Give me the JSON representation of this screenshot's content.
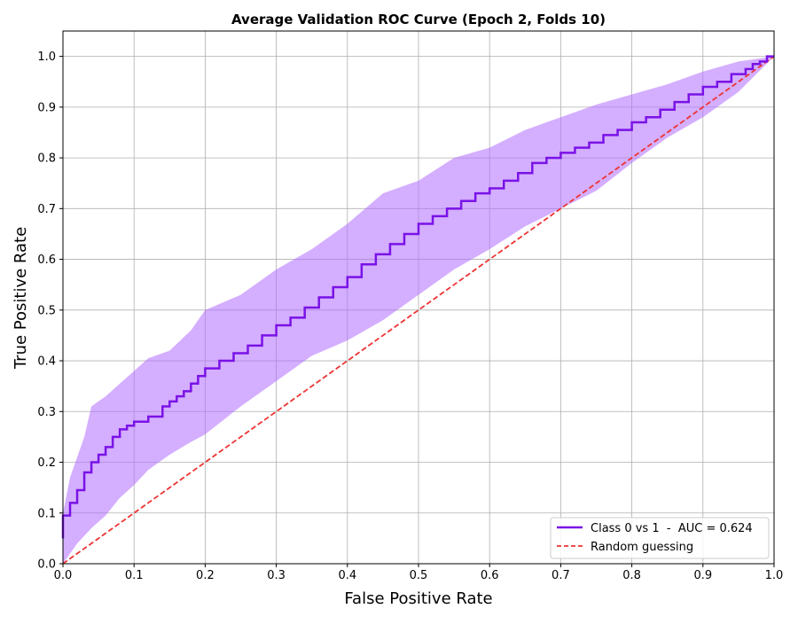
{
  "chart_data": {
    "type": "line",
    "title": "Average Validation ROC Curve (Epoch 2, Folds 10)",
    "xlabel": "False Positive Rate",
    "ylabel": "True Positive Rate",
    "xlim": [
      0.0,
      1.0
    ],
    "ylim": [
      0.0,
      1.05
    ],
    "xticks": [
      "0.0",
      "0.1",
      "0.2",
      "0.3",
      "0.4",
      "0.5",
      "0.6",
      "0.7",
      "0.8",
      "0.9",
      "1.0"
    ],
    "yticks": [
      "0.0",
      "0.1",
      "0.2",
      "0.3",
      "0.4",
      "0.5",
      "0.6",
      "0.7",
      "0.8",
      "0.9",
      "1.0"
    ],
    "grid": true,
    "legend_position": "bottom-right",
    "series": [
      {
        "name": "Class 0 vs 1  -  AUC = 0.624",
        "color": "#7a12e6",
        "style": "step",
        "x": [
          0.0,
          0.0,
          0.01,
          0.02,
          0.03,
          0.04,
          0.05,
          0.06,
          0.07,
          0.08,
          0.09,
          0.1,
          0.12,
          0.14,
          0.15,
          0.16,
          0.17,
          0.18,
          0.19,
          0.2,
          0.22,
          0.24,
          0.26,
          0.28,
          0.3,
          0.32,
          0.34,
          0.36,
          0.38,
          0.4,
          0.42,
          0.44,
          0.46,
          0.48,
          0.5,
          0.52,
          0.54,
          0.56,
          0.58,
          0.6,
          0.62,
          0.64,
          0.66,
          0.68,
          0.7,
          0.72,
          0.74,
          0.76,
          0.78,
          0.8,
          0.82,
          0.84,
          0.86,
          0.88,
          0.9,
          0.92,
          0.94,
          0.96,
          0.97,
          0.98,
          0.99,
          1.0
        ],
        "y": [
          0.05,
          0.095,
          0.12,
          0.145,
          0.18,
          0.2,
          0.215,
          0.23,
          0.25,
          0.265,
          0.272,
          0.28,
          0.29,
          0.31,
          0.32,
          0.33,
          0.34,
          0.355,
          0.37,
          0.385,
          0.4,
          0.415,
          0.43,
          0.45,
          0.47,
          0.485,
          0.505,
          0.525,
          0.545,
          0.565,
          0.59,
          0.61,
          0.63,
          0.65,
          0.67,
          0.685,
          0.7,
          0.715,
          0.73,
          0.74,
          0.755,
          0.77,
          0.79,
          0.8,
          0.81,
          0.82,
          0.83,
          0.845,
          0.855,
          0.87,
          0.88,
          0.895,
          0.91,
          0.925,
          0.94,
          0.95,
          0.965,
          0.975,
          0.985,
          0.99,
          1.0,
          1.0
        ]
      },
      {
        "name": "Random guessing",
        "color": "#ee3333",
        "style": "dashed",
        "x": [
          0.0,
          1.0
        ],
        "y": [
          0.0,
          1.0
        ]
      }
    ],
    "band": {
      "color": "#b06cff",
      "opacity": 0.55,
      "x": [
        0.0,
        0.01,
        0.02,
        0.03,
        0.04,
        0.06,
        0.08,
        0.1,
        0.12,
        0.15,
        0.18,
        0.2,
        0.25,
        0.3,
        0.35,
        0.4,
        0.45,
        0.5,
        0.55,
        0.6,
        0.65,
        0.7,
        0.75,
        0.8,
        0.85,
        0.9,
        0.95,
        1.0
      ],
      "upper": [
        0.1,
        0.17,
        0.21,
        0.25,
        0.31,
        0.33,
        0.355,
        0.38,
        0.405,
        0.42,
        0.46,
        0.5,
        0.53,
        0.58,
        0.62,
        0.67,
        0.73,
        0.755,
        0.8,
        0.82,
        0.855,
        0.88,
        0.905,
        0.925,
        0.945,
        0.97,
        0.99,
        1.0
      ],
      "lower": [
        0.0,
        0.02,
        0.04,
        0.055,
        0.07,
        0.095,
        0.13,
        0.155,
        0.185,
        0.215,
        0.24,
        0.255,
        0.31,
        0.36,
        0.41,
        0.44,
        0.48,
        0.53,
        0.58,
        0.62,
        0.665,
        0.7,
        0.735,
        0.79,
        0.84,
        0.88,
        0.93,
        1.0
      ]
    }
  }
}
